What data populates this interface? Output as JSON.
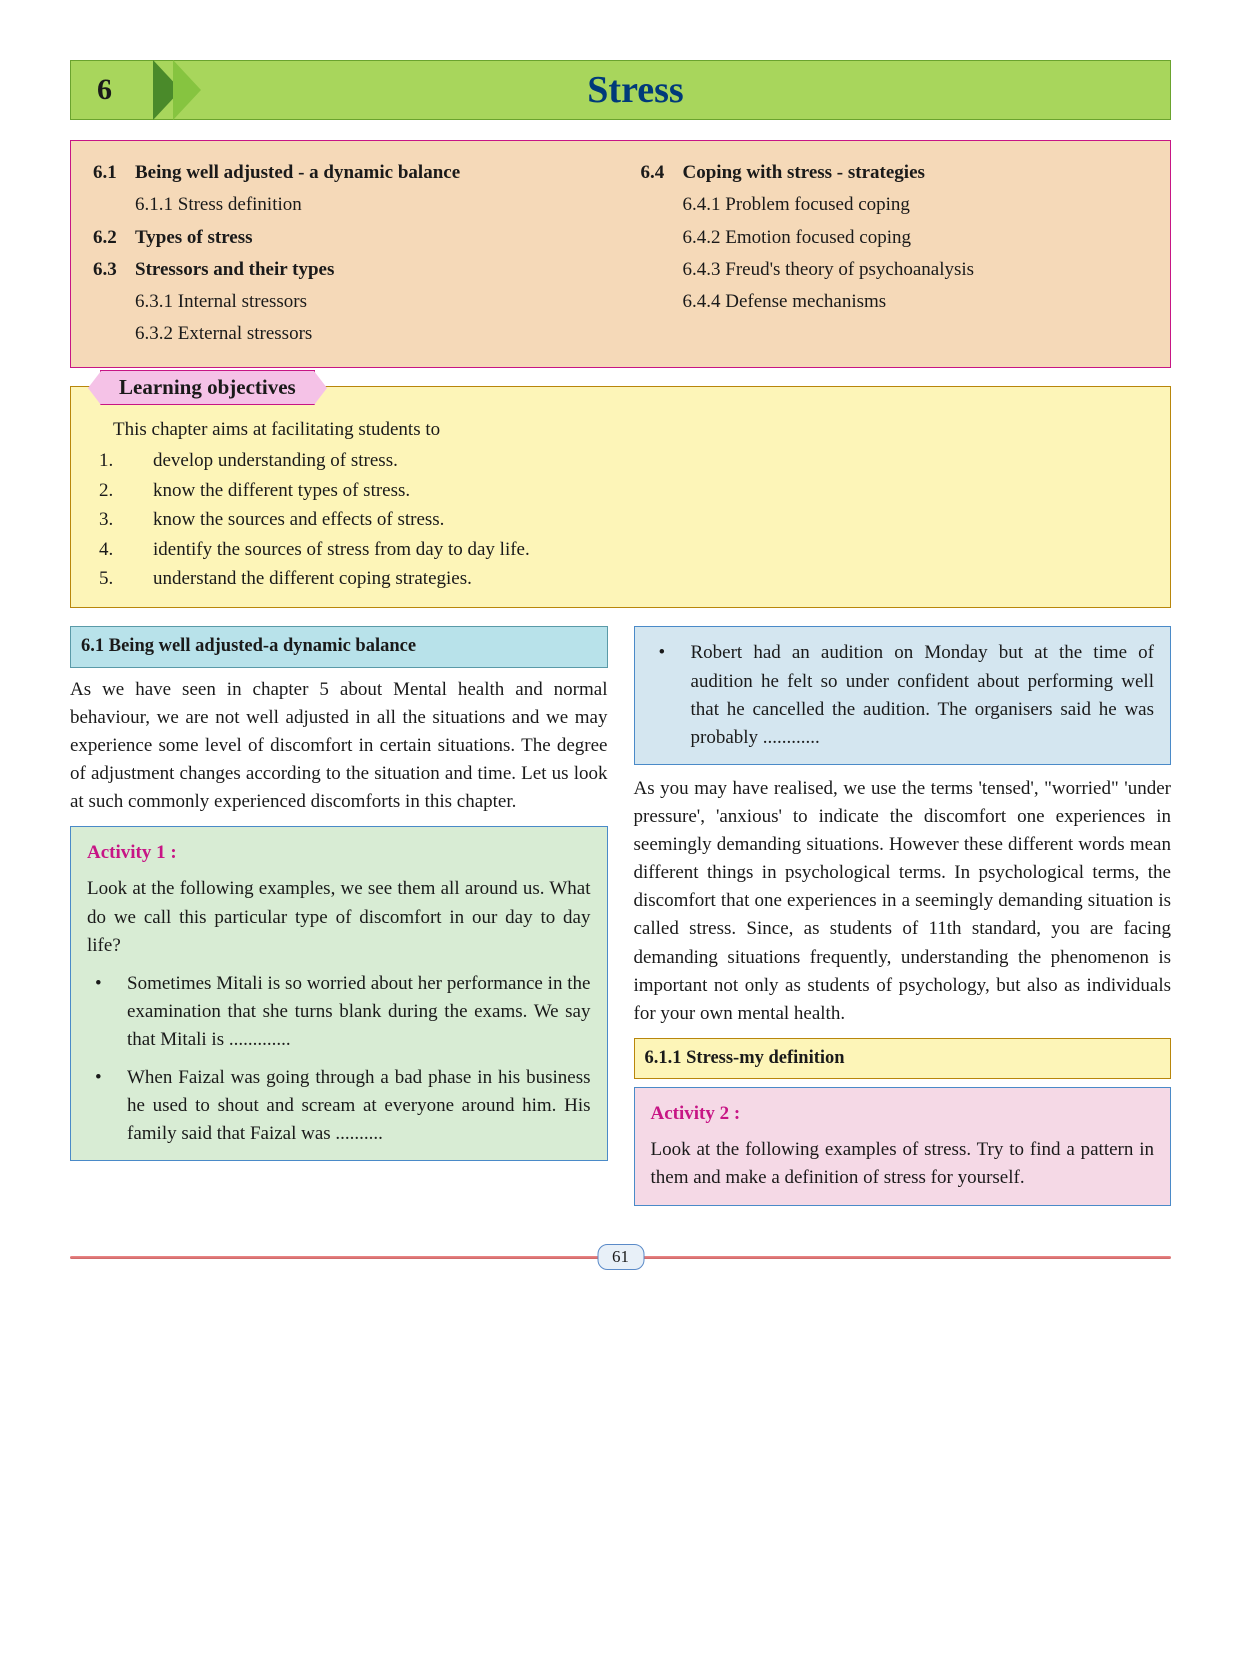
{
  "chapter": {
    "number": "6",
    "title": "Stress"
  },
  "toc": {
    "left": [
      {
        "num": "6.1",
        "title": "Being well adjusted - a dynamic balance",
        "subs": [
          "6.1.1 Stress definition"
        ]
      },
      {
        "num": "6.2",
        "title": "Types of stress",
        "subs": []
      },
      {
        "num": "6.3",
        "title": "Stressors and their types",
        "subs": [
          "6.3.1 Internal stressors",
          "6.3.2 External stressors"
        ]
      }
    ],
    "right": [
      {
        "num": "6.4",
        "title": "Coping with stress - strategies",
        "subs": [
          "6.4.1 Problem focused coping",
          "6.4.2 Emotion focused coping",
          "6.4.3 Freud's theory of psychoanalysis",
          "6.4.4 Defense mechanisms"
        ]
      }
    ]
  },
  "objectives": {
    "heading": "Learning objectives",
    "intro": "This chapter aims at facilitating students to",
    "items": [
      "develop understanding of stress.",
      "know the different types of stress.",
      "know the sources and  effects of stress.",
      "identify the sources of stress from day to day life.",
      "understand the different coping strategies."
    ]
  },
  "section61": {
    "heading": "6.1 Being well adjusted-a dynamic balance",
    "para": "As we have seen in chapter 5 about Mental health and normal behaviour, we are not well adjusted in  all the situations and we may experience some level of discomfort in certain situations. The degree of adjustment changes according to the situation and time. Let us look at such commonly experienced discomforts in this chapter."
  },
  "activity1": {
    "title": "Activity 1 :",
    "intro": "Look at the following examples, we see them all around us. What do we call this particular type of discomfort in our day to day life?",
    "bullets": [
      "Sometimes Mitali is so worried about her performance in the examination that she turns blank during the exams. We say that Mitali is .............",
      "When Faizal was going through a bad phase in his business he used to shout and scream at everyone around him. His family said that Faizal was .........."
    ],
    "bullet_col2": "Robert had an audition on Monday but at the time of audition he felt so under confident about performing well that he cancelled the audition. The organisers said he was probably ............"
  },
  "para2": "As you may have realised, we use the terms 'tensed', \"worried\" 'under pressure', 'anxious' to indicate the discomfort one experiences in seemingly demanding situations. However these different words mean different things in psychological terms. In psychological terms, the discomfort that one experiences in a seemingly demanding situation is called stress. Since, as students of 11th standard, you are facing demanding situations frequently, understanding the phenomenon is important not only as students of psychology, but also as individuals for your own mental health.",
  "section611": {
    "heading": "6.1.1 Stress-my definition"
  },
  "activity2": {
    "title": "Activity 2 :",
    "intro": "Look at the following examples of stress. Try to find a pattern in them and make a definition of stress for yourself."
  },
  "page_number": "61"
}
